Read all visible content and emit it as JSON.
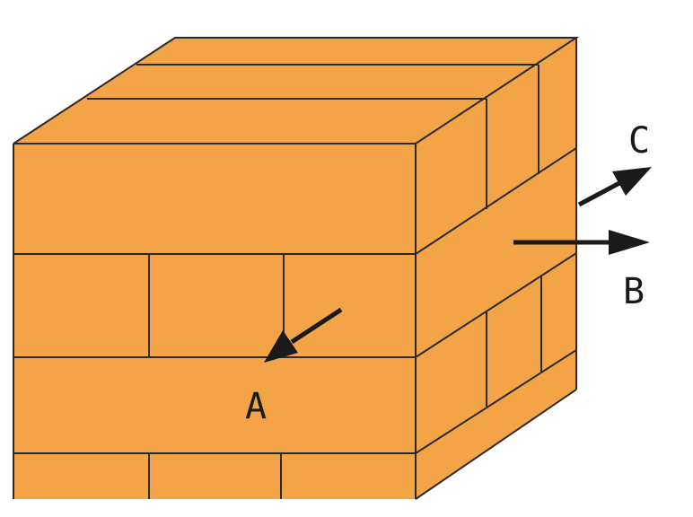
{
  "labels": {
    "a": "A",
    "b": "B",
    "c": "C"
  },
  "colors": {
    "brick_face": "#f2a447",
    "brick_edge": "#2a2a2a",
    "arrow": "#1a1a1a",
    "background": "#ffffff"
  }
}
